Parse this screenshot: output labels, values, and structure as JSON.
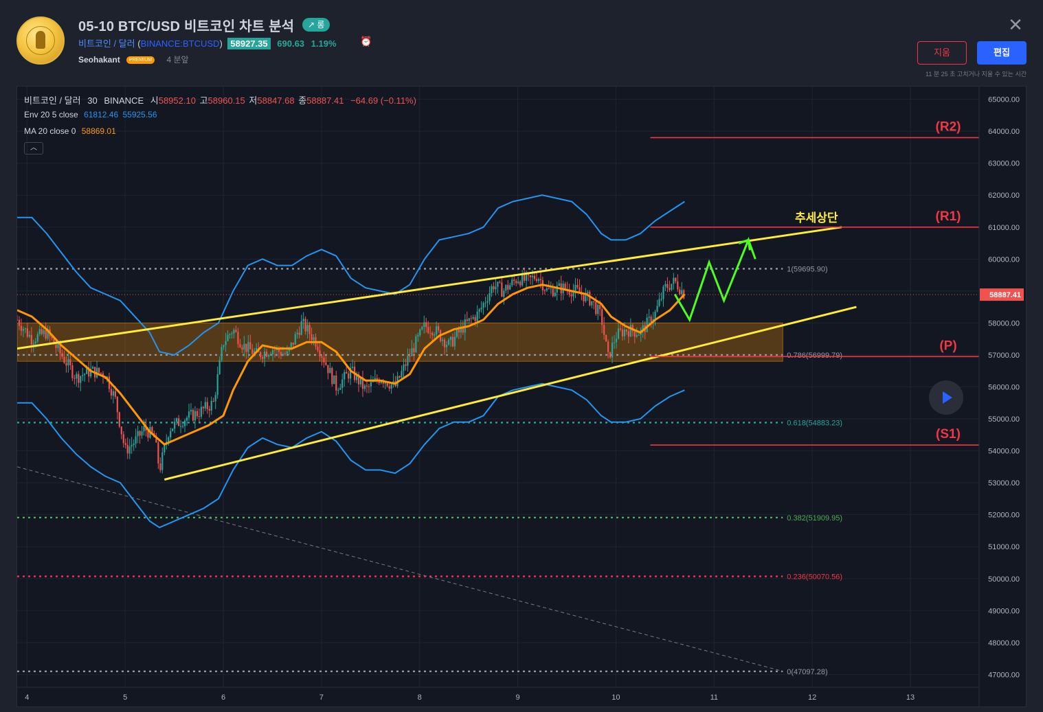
{
  "header": {
    "title": "05-10 BTC/USD 비트코인 차트 분석",
    "badge": "↗ 롱",
    "symbol_name": "비트코인 / 달러",
    "symbol_open": "(",
    "symbol_ticker": "BINANCE:BTCUSD",
    "symbol_close": ")",
    "price": "58927.35",
    "change": "690.63",
    "change_pct": "1.19%",
    "author": "Seohakant",
    "author_badge": "PREMIUM",
    "time_ago": "4 분앞",
    "delete_label": "지움",
    "edit_label": "편집",
    "edit_note": "11 분 25 초 고치거나 지울 수 있는 시간"
  },
  "legend": {
    "symbol": "비트코인 / 달러",
    "interval": "30",
    "exchange": "BINANCE",
    "o_label": "시",
    "o": "58952.10",
    "h_label": "고",
    "h": "58960.15",
    "l_label": "저",
    "l": "58847.68",
    "c_label": "종",
    "c": "58887.41",
    "chg": "−64.69 (−0.11%)",
    "env_label": "Env 20 5 close",
    "env_upper": "61812.46",
    "env_lower": "55925.56",
    "ma_label": "MA 20 close 0",
    "ma_value": "58869.01",
    "collapse": "︿"
  },
  "colors": {
    "background": "#131722",
    "band": "#2196f3",
    "ma": "#ff9800",
    "channel": "#ffeb3b",
    "level": "#f23645",
    "up": "#26a69a",
    "down": "#ef5350",
    "arrow": "#4cff1f"
  },
  "chart_data": {
    "type": "candlestick",
    "price_axis": {
      "min": 46600,
      "max": 65400,
      "ticks": [
        "65000.00",
        "64000.00",
        "63000.00",
        "62000.00",
        "61000.00",
        "60000.00",
        "59000.00",
        "58000.00",
        "57000.00",
        "56000.00",
        "55000.00",
        "54000.00",
        "53000.00",
        "52000.00",
        "51000.00",
        "50000.00",
        "49000.00",
        "48000.00",
        "47000.00"
      ],
      "tick_values": [
        65000,
        64000,
        63000,
        62000,
        61000,
        60000,
        59000,
        58000,
        57000,
        56000,
        55000,
        54000,
        53000,
        52000,
        51000,
        50000,
        49000,
        48000,
        47000
      ],
      "last_price": "58887.41",
      "last_price_value": 58887.41
    },
    "time_axis": {
      "labels": [
        "4",
        "5",
        "6",
        "7",
        "8",
        "9",
        "10",
        "11",
        "12",
        "13"
      ],
      "day_values": [
        4,
        5,
        6,
        7,
        8,
        9,
        10,
        11,
        12,
        13
      ],
      "min_day": 3.9,
      "max_day": 13.7
    },
    "close_path": [
      [
        3.9,
        58100
      ],
      [
        4.05,
        57500
      ],
      [
        4.2,
        57700
      ],
      [
        4.35,
        57000
      ],
      [
        4.5,
        56300
      ],
      [
        4.65,
        56500
      ],
      [
        4.8,
        56400
      ],
      [
        4.9,
        55600
      ],
      [
        5.0,
        54000
      ],
      [
        5.1,
        54300
      ],
      [
        5.2,
        54700
      ],
      [
        5.3,
        54400
      ],
      [
        5.35,
        53400
      ],
      [
        5.45,
        54700
      ],
      [
        5.6,
        55000
      ],
      [
        5.75,
        55200
      ],
      [
        5.9,
        55500
      ],
      [
        6.0,
        57400
      ],
      [
        6.1,
        57800
      ],
      [
        6.2,
        57300
      ],
      [
        6.35,
        57000
      ],
      [
        6.5,
        57200
      ],
      [
        6.65,
        57000
      ],
      [
        6.8,
        58000
      ],
      [
        6.95,
        57400
      ],
      [
        7.05,
        56700
      ],
      [
        7.15,
        56000
      ],
      [
        7.3,
        56500
      ],
      [
        7.45,
        55900
      ],
      [
        7.6,
        56300
      ],
      [
        7.75,
        56000
      ],
      [
        7.9,
        57000
      ],
      [
        8.05,
        57900
      ],
      [
        8.15,
        57800
      ],
      [
        8.3,
        57300
      ],
      [
        8.45,
        57900
      ],
      [
        8.6,
        58300
      ],
      [
        8.75,
        59200
      ],
      [
        8.85,
        59000
      ],
      [
        9.0,
        59400
      ],
      [
        9.1,
        59300
      ],
      [
        9.2,
        59500
      ],
      [
        9.3,
        59000
      ],
      [
        9.45,
        59100
      ],
      [
        9.6,
        59000
      ],
      [
        9.75,
        58700
      ],
      [
        9.85,
        58200
      ],
      [
        9.92,
        56900
      ],
      [
        10.0,
        57600
      ],
      [
        10.1,
        57800
      ],
      [
        10.25,
        57700
      ],
      [
        10.4,
        58300
      ],
      [
        10.5,
        59100
      ],
      [
        10.6,
        59300
      ],
      [
        10.7,
        58900
      ]
    ],
    "ma_path": [
      [
        3.9,
        58400
      ],
      [
        4.05,
        58200
      ],
      [
        4.2,
        57800
      ],
      [
        4.35,
        57300
      ],
      [
        4.5,
        56900
      ],
      [
        4.65,
        56500
      ],
      [
        4.8,
        56300
      ],
      [
        4.95,
        55800
      ],
      [
        5.1,
        55200
      ],
      [
        5.25,
        54600
      ],
      [
        5.4,
        54200
      ],
      [
        5.55,
        54400
      ],
      [
        5.7,
        54600
      ],
      [
        5.85,
        54800
      ],
      [
        6.0,
        55100
      ],
      [
        6.1,
        55900
      ],
      [
        6.25,
        56800
      ],
      [
        6.4,
        57300
      ],
      [
        6.55,
        57200
      ],
      [
        6.7,
        57200
      ],
      [
        6.85,
        57400
      ],
      [
        7.0,
        57400
      ],
      [
        7.15,
        57100
      ],
      [
        7.3,
        56500
      ],
      [
        7.45,
        56200
      ],
      [
        7.6,
        56200
      ],
      [
        7.75,
        56100
      ],
      [
        7.9,
        56400
      ],
      [
        8.05,
        57200
      ],
      [
        8.2,
        57600
      ],
      [
        8.35,
        57800
      ],
      [
        8.5,
        57900
      ],
      [
        8.65,
        58100
      ],
      [
        8.8,
        58600
      ],
      [
        8.95,
        58900
      ],
      [
        9.1,
        59100
      ],
      [
        9.25,
        59200
      ],
      [
        9.4,
        59100
      ],
      [
        9.55,
        59000
      ],
      [
        9.7,
        58900
      ],
      [
        9.85,
        58600
      ],
      [
        9.95,
        58200
      ],
      [
        10.1,
        57900
      ],
      [
        10.25,
        57700
      ],
      [
        10.4,
        58100
      ],
      [
        10.55,
        58400
      ],
      [
        10.7,
        58900
      ]
    ],
    "env_upper": [
      [
        3.9,
        61300
      ],
      [
        4.05,
        61300
      ],
      [
        4.2,
        60800
      ],
      [
        4.35,
        60200
      ],
      [
        4.5,
        59600
      ],
      [
        4.65,
        59100
      ],
      [
        4.8,
        58900
      ],
      [
        4.95,
        58700
      ],
      [
        5.1,
        58200
      ],
      [
        5.25,
        57700
      ],
      [
        5.35,
        57100
      ],
      [
        5.5,
        57000
      ],
      [
        5.65,
        57300
      ],
      [
        5.8,
        57700
      ],
      [
        5.95,
        58000
      ],
      [
        6.1,
        59000
      ],
      [
        6.25,
        59800
      ],
      [
        6.4,
        60000
      ],
      [
        6.55,
        59800
      ],
      [
        6.7,
        59800
      ],
      [
        6.85,
        60100
      ],
      [
        7.0,
        60300
      ],
      [
        7.15,
        60100
      ],
      [
        7.3,
        59400
      ],
      [
        7.45,
        59100
      ],
      [
        7.6,
        59000
      ],
      [
        7.75,
        58900
      ],
      [
        7.9,
        59200
      ],
      [
        8.05,
        60000
      ],
      [
        8.2,
        60600
      ],
      [
        8.35,
        60700
      ],
      [
        8.5,
        60800
      ],
      [
        8.65,
        61000
      ],
      [
        8.8,
        61600
      ],
      [
        8.95,
        61800
      ],
      [
        9.1,
        61900
      ],
      [
        9.25,
        62000
      ],
      [
        9.4,
        61900
      ],
      [
        9.55,
        61800
      ],
      [
        9.7,
        61400
      ],
      [
        9.85,
        60800
      ],
      [
        9.95,
        60600
      ],
      [
        10.1,
        60600
      ],
      [
        10.25,
        60800
      ],
      [
        10.4,
        61200
      ],
      [
        10.55,
        61500
      ],
      [
        10.7,
        61800
      ]
    ],
    "env_lower": [
      [
        3.9,
        55500
      ],
      [
        4.05,
        55500
      ],
      [
        4.2,
        55000
      ],
      [
        4.35,
        54400
      ],
      [
        4.5,
        53900
      ],
      [
        4.65,
        53500
      ],
      [
        4.8,
        53200
      ],
      [
        4.95,
        53000
      ],
      [
        5.1,
        52400
      ],
      [
        5.25,
        51800
      ],
      [
        5.35,
        51600
      ],
      [
        5.5,
        51800
      ],
      [
        5.65,
        52000
      ],
      [
        5.8,
        52200
      ],
      [
        5.95,
        52500
      ],
      [
        6.1,
        53400
      ],
      [
        6.25,
        54100
      ],
      [
        6.4,
        54400
      ],
      [
        6.55,
        54200
      ],
      [
        6.7,
        54100
      ],
      [
        6.85,
        54400
      ],
      [
        7.0,
        54600
      ],
      [
        7.15,
        54300
      ],
      [
        7.3,
        53700
      ],
      [
        7.45,
        53400
      ],
      [
        7.6,
        53400
      ],
      [
        7.75,
        53300
      ],
      [
        7.9,
        53600
      ],
      [
        8.05,
        54200
      ],
      [
        8.2,
        54700
      ],
      [
        8.35,
        54900
      ],
      [
        8.5,
        54900
      ],
      [
        8.65,
        55100
      ],
      [
        8.8,
        55700
      ],
      [
        8.95,
        55900
      ],
      [
        9.1,
        56000
      ],
      [
        9.25,
        56100
      ],
      [
        9.4,
        56000
      ],
      [
        9.55,
        55900
      ],
      [
        9.7,
        55600
      ],
      [
        9.85,
        55100
      ],
      [
        9.95,
        54900
      ],
      [
        10.1,
        54900
      ],
      [
        10.25,
        55000
      ],
      [
        10.4,
        55400
      ],
      [
        10.55,
        55700
      ],
      [
        10.7,
        55900
      ]
    ],
    "channel_upper": [
      [
        3.9,
        57200
      ],
      [
        12.3,
        61000
      ]
    ],
    "channel_lower": [
      [
        5.4,
        53100
      ],
      [
        12.45,
        58500
      ]
    ],
    "trend_dashed": [
      [
        3.9,
        53500
      ],
      [
        11.7,
        47100
      ]
    ],
    "zone": {
      "from_day": 3.9,
      "to_day": 11.7,
      "top": 58000,
      "bottom": 56800
    },
    "fib_levels": [
      {
        "label": "1(59695.90)",
        "value": 59695.9,
        "color": "#9598a1"
      },
      {
        "label": "0.786(56999.79)",
        "value": 56999.79,
        "color": "#9598a1"
      },
      {
        "label": "0.618(54883.23)",
        "value": 54883.23,
        "color": "#26a69a"
      },
      {
        "label": "0.382(51909.95)",
        "value": 51909.95,
        "color": "#4caf50"
      },
      {
        "label": "0.236(50070.56)",
        "value": 50070.56,
        "color": "#f23645"
      },
      {
        "label": "0(47097.28)",
        "value": 47097.28,
        "color": "#9598a1"
      }
    ],
    "sr_levels": [
      {
        "label": "(R2)",
        "value": 63800
      },
      {
        "label": "(R1)",
        "value": 61000
      },
      {
        "label": "(P)",
        "value": 56950
      },
      {
        "label": "(S1)",
        "value": 54180
      }
    ],
    "trend_label": "추세상단",
    "projection": [
      [
        10.6,
        58900
      ],
      [
        10.75,
        58100
      ],
      [
        10.95,
        59900
      ],
      [
        11.1,
        58700
      ],
      [
        11.35,
        60600
      ],
      [
        11.42,
        60000
      ]
    ]
  }
}
